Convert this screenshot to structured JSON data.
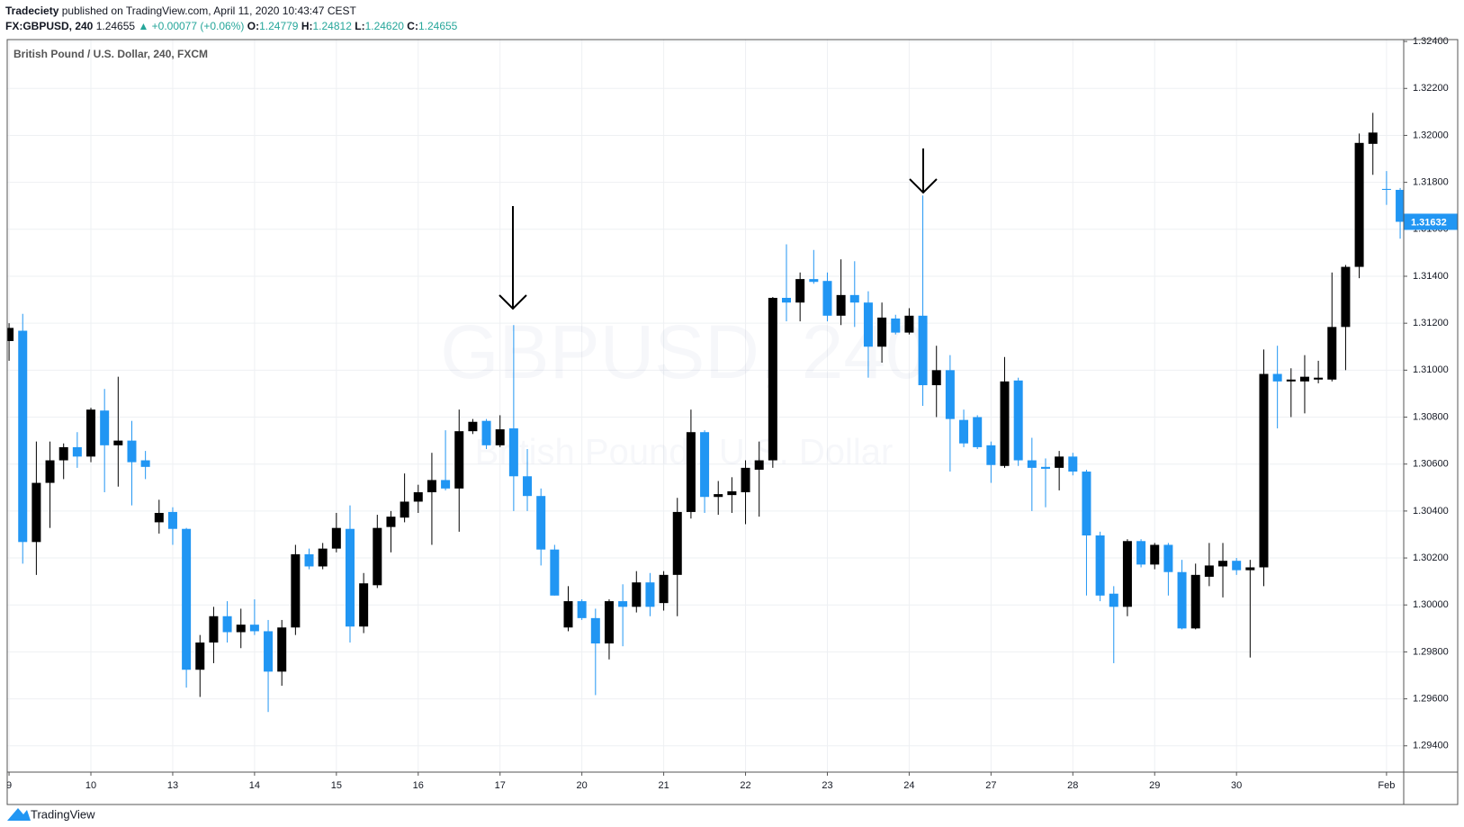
{
  "header": {
    "author": "Tradeciety",
    "published": "published on TradingView.com, April 11, 2020 10:43:47 CEST",
    "symbol": "FX:GBPUSD, 240",
    "last": "1.24655",
    "change": "▲ +0.00077 (+0.06%)",
    "ohlc": [
      {
        "label": "O:",
        "value": "1.24779"
      },
      {
        "label": "H:",
        "value": "1.24812"
      },
      {
        "label": "L:",
        "value": "1.24620"
      },
      {
        "label": "C:",
        "value": "1.24655"
      }
    ]
  },
  "chart_data": {
    "type": "candlestick",
    "legend": "British Pound / U.S. Dollar, 240, FXCM",
    "watermark": "GBPUSD, 240",
    "watermark_subtitle": "British Pound / U.S. Dollar",
    "up_color": "#000000",
    "down_color": "#2196f3",
    "grid": true,
    "ylim": [
      1.29288,
      1.32408
    ],
    "yticks": [
      {
        "value": 1.294,
        "label": "1.29400"
      },
      {
        "value": 1.296,
        "label": "1.29600"
      },
      {
        "value": 1.298,
        "label": "1.29800"
      },
      {
        "value": 1.3,
        "label": "1.30000"
      },
      {
        "value": 1.302,
        "label": "1.30200"
      },
      {
        "value": 1.304,
        "label": "1.30400"
      },
      {
        "value": 1.306,
        "label": "1.30600"
      },
      {
        "value": 1.308,
        "label": "1.30800"
      },
      {
        "value": 1.31,
        "label": "1.31000"
      },
      {
        "value": 1.312,
        "label": "1.31200"
      },
      {
        "value": 1.314,
        "label": "1.31400"
      },
      {
        "value": 1.316,
        "label": "1.31600"
      },
      {
        "value": 1.318,
        "label": "1.31800"
      },
      {
        "value": 1.32,
        "label": "1.32000"
      },
      {
        "value": 1.322,
        "label": "1.32200"
      },
      {
        "value": 1.324,
        "label": "1.32400"
      }
    ],
    "categories": [
      "9",
      null,
      null,
      null,
      null,
      null,
      "10",
      null,
      null,
      null,
      null,
      null,
      "13",
      null,
      null,
      null,
      null,
      null,
      "14",
      null,
      null,
      null,
      null,
      null,
      "15",
      null,
      null,
      null,
      null,
      null,
      "16",
      null,
      null,
      null,
      null,
      null,
      "17",
      null,
      null,
      null,
      null,
      null,
      "20",
      null,
      null,
      null,
      null,
      null,
      "21",
      null,
      null,
      null,
      null,
      null,
      "22",
      null,
      null,
      null,
      null,
      null,
      "23",
      null,
      null,
      null,
      null,
      null,
      "24",
      null,
      null,
      null,
      null,
      null,
      "27",
      null,
      null,
      null,
      null,
      null,
      "28",
      null,
      null,
      null,
      null,
      null,
      "29",
      null,
      null,
      null,
      null,
      null,
      "30",
      null,
      null,
      null,
      null,
      null,
      null,
      null,
      null,
      null,
      null,
      "Feb",
      null
    ],
    "open": [
      1.31124,
      1.31168,
      1.30268,
      1.3052,
      1.30616,
      1.30672,
      1.30632,
      1.30828,
      1.3068,
      1.307,
      1.30616,
      1.30352,
      1.30396,
      1.30324,
      1.29724,
      1.2984,
      1.29952,
      1.29884,
      1.29916,
      1.29888,
      1.29716,
      1.29904,
      1.30216,
      1.30164,
      1.3024,
      1.30324,
      1.29908,
      1.30084,
      1.30332,
      1.30372,
      1.3044,
      1.3048,
      1.30532,
      1.30496,
      1.3074,
      1.30784,
      1.3068,
      1.30752,
      1.30548,
      1.30464,
      1.30236,
      1.29904,
      1.30016,
      1.29944,
      1.29836,
      1.30016,
      1.29992,
      1.30096,
      1.30008,
      1.30128,
      1.30396,
      1.30736,
      1.3046,
      1.30468,
      1.3048,
      1.30576,
      1.30616,
      1.31308,
      1.31288,
      1.31388,
      1.3138,
      1.31232,
      1.3132,
      1.31288,
      1.311,
      1.3122,
      1.3116,
      1.31232,
      1.30936,
      1.31,
      1.30788,
      1.308,
      1.3068,
      1.30592,
      1.30956,
      1.30616,
      1.30588,
      1.30584,
      1.30632,
      1.30568,
      1.30296,
      1.30048,
      1.29992,
      1.30272,
      1.30172,
      1.30256,
      1.3014,
      1.299,
      1.3012,
      1.30164,
      1.30188,
      1.30148,
      1.3016,
      1.30984,
      1.30952,
      1.30952,
      1.3096,
      1.3096,
      1.31184,
      1.3144,
      1.31964,
      1.31772,
      1.31768
    ],
    "high": [
      1.312,
      1.3124,
      1.30696,
      1.30696,
      1.30688,
      1.30736,
      1.3084,
      1.3092,
      1.30972,
      1.30784,
      1.30656,
      1.30448,
      1.30416,
      1.30328,
      1.29872,
      1.29992,
      1.30016,
      1.29984,
      1.30024,
      1.29936,
      1.29936,
      1.30256,
      1.3024,
      1.30264,
      1.30392,
      1.30424,
      1.30136,
      1.30384,
      1.304,
      1.3056,
      1.30512,
      1.30648,
      1.30744,
      1.30832,
      1.30792,
      1.30792,
      1.30808,
      1.31192,
      1.30664,
      1.30496,
      1.30256,
      1.3008,
      1.30024,
      1.29984,
      1.30024,
      1.30088,
      1.30144,
      1.30136,
      1.30144,
      1.30456,
      1.30832,
      1.30744,
      1.30528,
      1.30544,
      1.30616,
      1.30696,
      1.31312,
      1.31536,
      1.31416,
      1.31512,
      1.31416,
      1.31472,
      1.31464,
      1.31336,
      1.31288,
      1.31236,
      1.31264,
      1.31744,
      1.31104,
      1.31064,
      1.30832,
      1.30808,
      1.30696,
      1.31056,
      1.30968,
      1.30712,
      1.30624,
      1.30656,
      1.30648,
      1.30576,
      1.30312,
      1.3008,
      1.3028,
      1.3028,
      1.30264,
      1.30264,
      1.30192,
      1.30176,
      1.30264,
      1.30264,
      1.302,
      1.30192,
      1.31088,
      1.31104,
      1.31008,
      1.31064,
      1.3104,
      1.31416,
      1.31448,
      1.32008,
      1.32096,
      1.31848,
      1.31776
    ],
    "low": [
      1.3104,
      1.30176,
      1.30128,
      1.30328,
      1.30536,
      1.30584,
      1.30608,
      1.3048,
      1.30504,
      1.30424,
      1.30536,
      1.30304,
      1.30256,
      1.29648,
      1.29608,
      1.29752,
      1.2984,
      1.29816,
      1.29872,
      1.29544,
      1.29656,
      1.29872,
      1.30152,
      1.30152,
      1.30224,
      1.2984,
      1.2988,
      1.30072,
      1.30224,
      1.30352,
      1.30392,
      1.30256,
      1.30488,
      1.30312,
      1.30728,
      1.30664,
      1.30672,
      1.304,
      1.304,
      1.30168,
      1.3004,
      1.29888,
      1.29936,
      1.29616,
      1.29768,
      1.29824,
      1.29968,
      1.29952,
      1.29976,
      1.29952,
      1.30368,
      1.30392,
      1.30384,
      1.30392,
      1.30344,
      1.30376,
      1.30584,
      1.31208,
      1.31208,
      1.31368,
      1.31208,
      1.31192,
      1.31184,
      1.30968,
      1.31032,
      1.31152,
      1.31152,
      1.30848,
      1.308,
      1.30568,
      1.30672,
      1.30664,
      1.3052,
      1.30584,
      1.30592,
      1.304,
      1.30416,
      1.30488,
      1.30552,
      1.3004,
      1.30016,
      1.29752,
      1.29952,
      1.3016,
      1.30152,
      1.3004,
      1.29896,
      1.29896,
      1.3008,
      1.30032,
      1.30128,
      1.29776,
      1.3008,
      1.30752,
      1.308,
      1.30816,
      1.30944,
      1.30952,
      1.31,
      1.31392,
      1.31832,
      1.31704,
      1.3156
    ],
    "close": [
      1.3118,
      1.30268,
      1.3052,
      1.30616,
      1.30672,
      1.30632,
      1.30832,
      1.3068,
      1.307,
      1.30608,
      1.30588,
      1.30392,
      1.30324,
      1.29724,
      1.2984,
      1.29952,
      1.29884,
      1.29916,
      1.29888,
      1.29716,
      1.29904,
      1.30216,
      1.30164,
      1.3024,
      1.30328,
      1.29908,
      1.30092,
      1.30328,
      1.30376,
      1.3044,
      1.3048,
      1.30532,
      1.30496,
      1.3074,
      1.3078,
      1.3068,
      1.30748,
      1.30548,
      1.30464,
      1.30236,
      1.3004,
      1.30016,
      1.29944,
      1.29836,
      1.30016,
      1.29992,
      1.30096,
      1.29992,
      1.30128,
      1.30396,
      1.30736,
      1.3046,
      1.30472,
      1.30484,
      1.30584,
      1.30616,
      1.31308,
      1.31288,
      1.31388,
      1.31376,
      1.31232,
      1.3132,
      1.31288,
      1.311,
      1.31224,
      1.3116,
      1.31232,
      1.30936,
      1.31,
      1.30792,
      1.30688,
      1.30672,
      1.30596,
      1.30952,
      1.30616,
      1.30584,
      1.3058,
      1.30632,
      1.30568,
      1.30296,
      1.3004,
      1.29992,
      1.30272,
      1.30172,
      1.30256,
      1.3014,
      1.299,
      1.30128,
      1.30168,
      1.30188,
      1.30148,
      1.3016,
      1.30984,
      1.30952,
      1.3096,
      1.30972,
      1.30968,
      1.31184,
      1.3144,
      1.31968,
      1.32012,
      1.31768,
      1.31632
    ]
  },
  "footer": {
    "logo": "TradingView"
  }
}
